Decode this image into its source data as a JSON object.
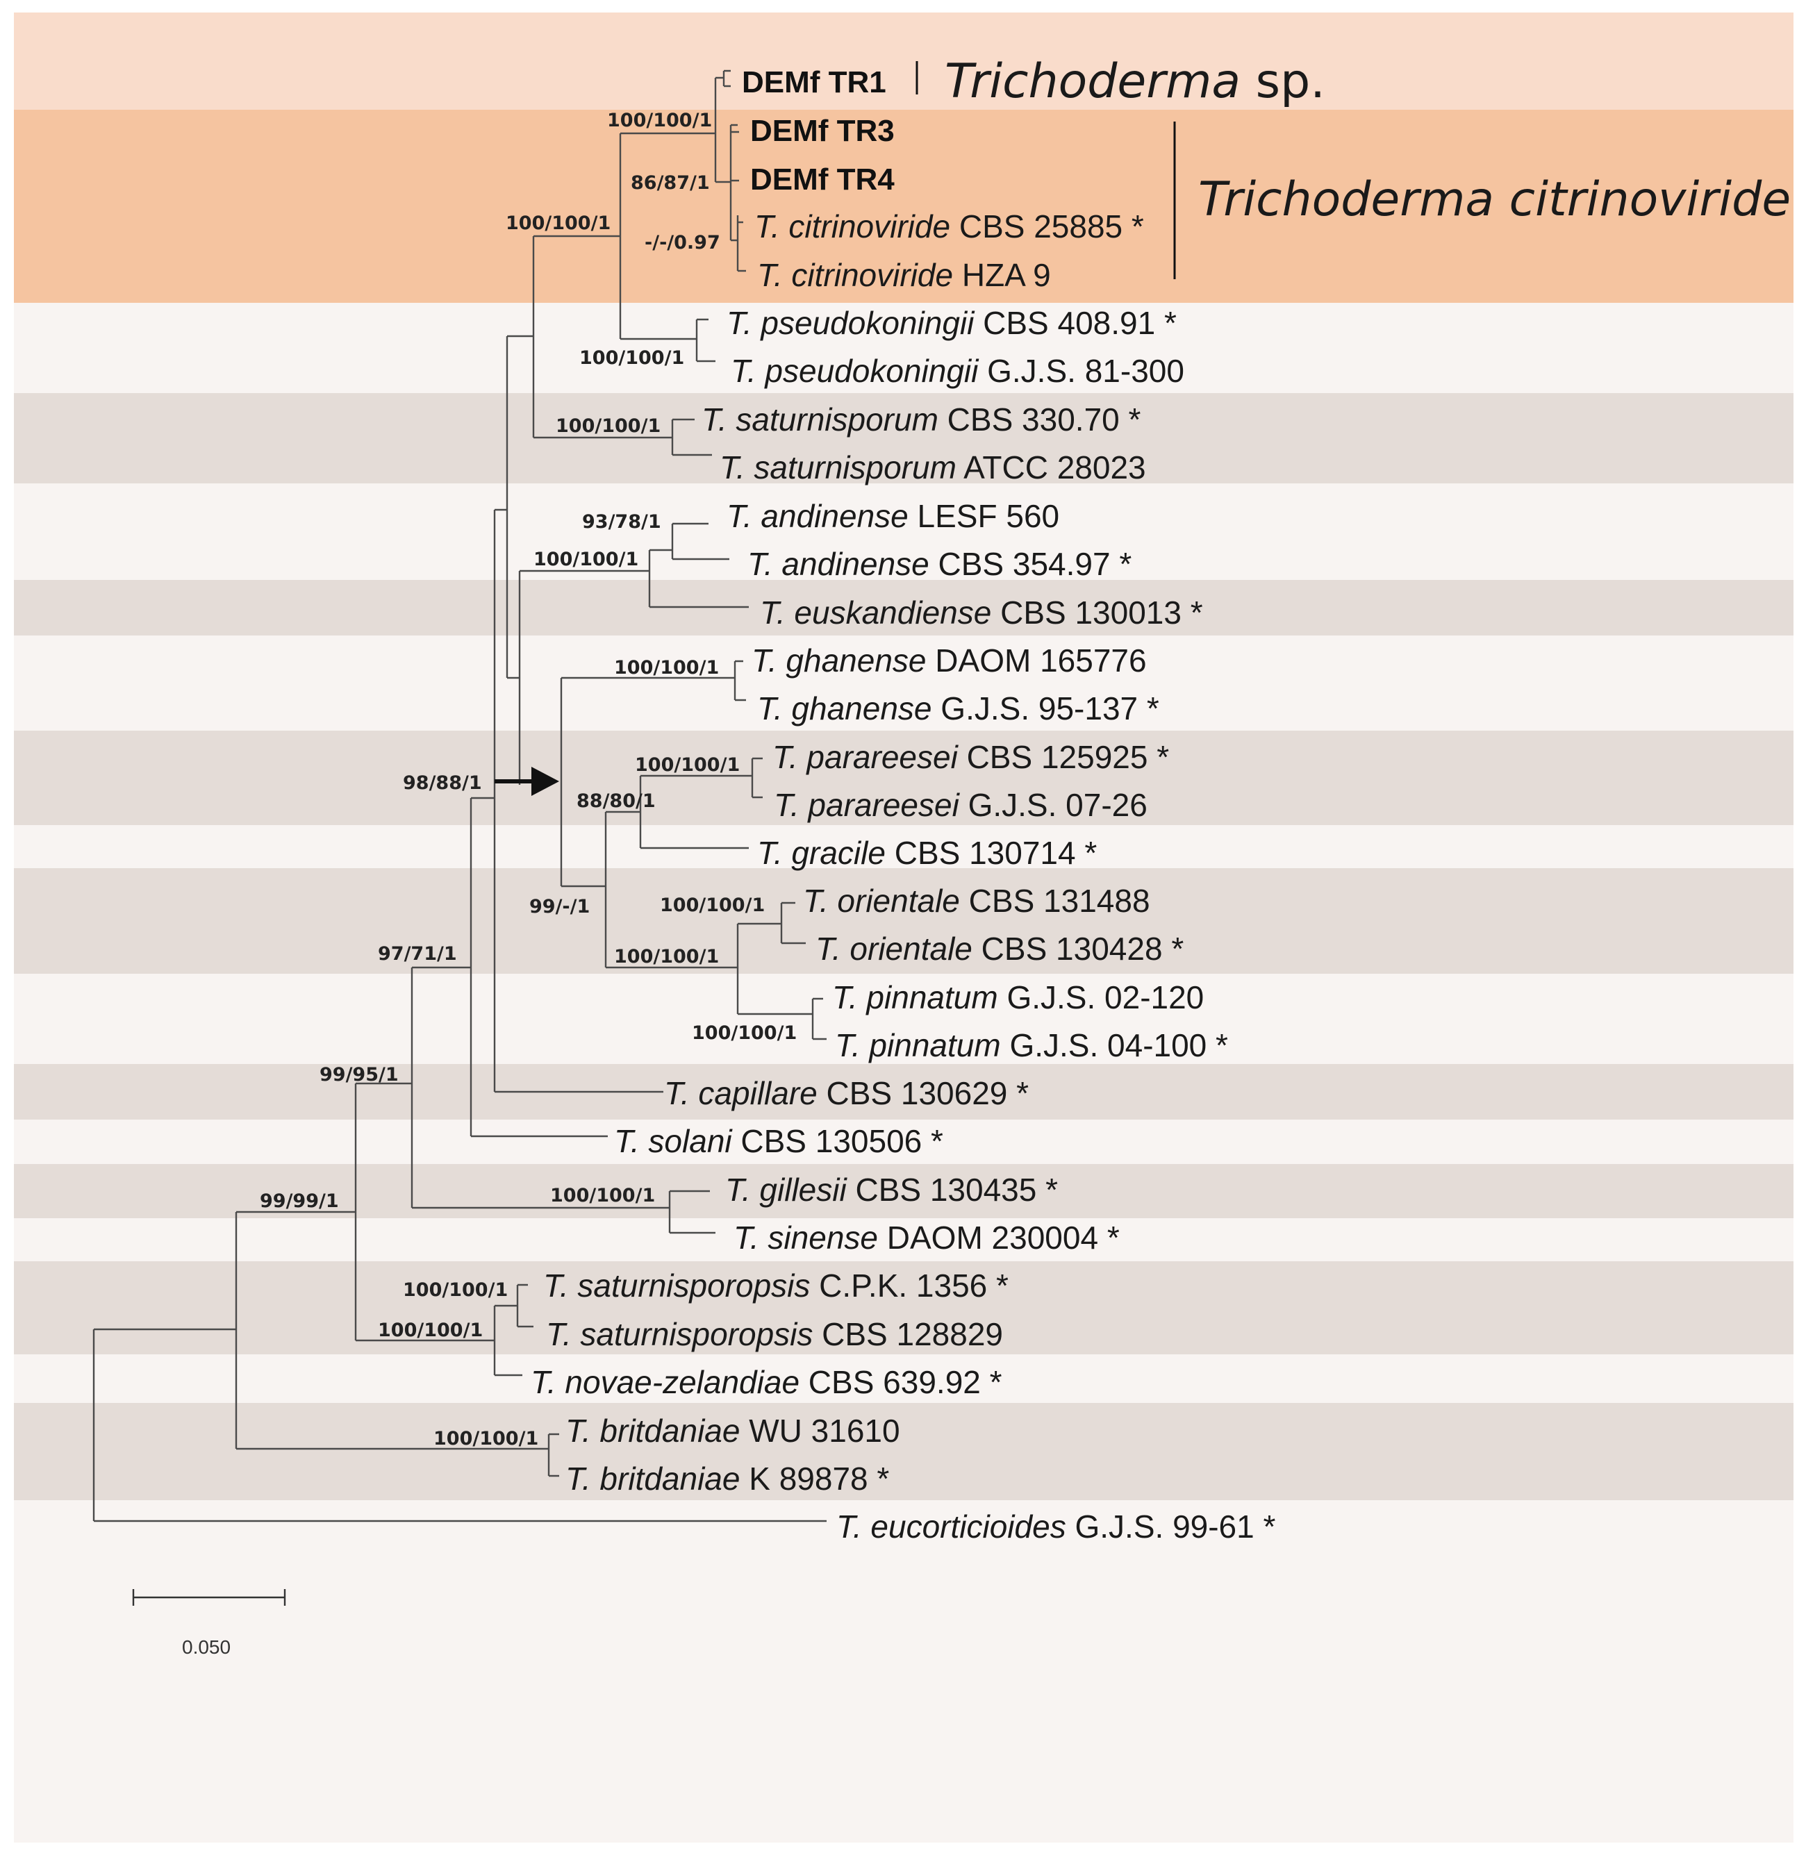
{
  "clades": {
    "trichoderma_sp": {
      "genus": "Trichoderma",
      "rest": " sp."
    },
    "citrinoviride": {
      "label": "Trichoderma citrinoviride"
    }
  },
  "taxa": [
    {
      "id": "tr1",
      "bold": "DEMf TR1"
    },
    {
      "id": "tr3",
      "bold": "DEMf TR3"
    },
    {
      "id": "tr4",
      "bold": "DEMf TR4"
    },
    {
      "id": "cit1",
      "species": "T. citrinoviride",
      "strain": " CBS 25885 *"
    },
    {
      "id": "cit2",
      "species": "T. citrinoviride",
      "strain": " HZA 9"
    },
    {
      "id": "pse1",
      "species": "T. pseudokoningii",
      "strain": " CBS 408.91 *"
    },
    {
      "id": "pse2",
      "species": "T. pseudokoningii",
      "strain": " G.J.S. 81-300"
    },
    {
      "id": "sat1",
      "species": "T. saturnisporum",
      "strain": " CBS 330.70 *"
    },
    {
      "id": "sat2",
      "species": "T. saturnisporum",
      "strain": " ATCC 28023"
    },
    {
      "id": "and1",
      "species": "T. andinense",
      "strain": " LESF 560"
    },
    {
      "id": "and2",
      "species": "T. andinense",
      "strain": " CBS 354.97 *"
    },
    {
      "id": "eus",
      "species": "T. euskandiense",
      "strain": " CBS 130013 *"
    },
    {
      "id": "gha1",
      "species": "T. ghanense",
      "strain": " DAOM 165776"
    },
    {
      "id": "gha2",
      "species": "T. ghanense",
      "strain": " G.J.S. 95-137 *"
    },
    {
      "id": "par1",
      "species": "T. parareesei",
      "strain": " CBS 125925 *"
    },
    {
      "id": "par2",
      "species": "T. parareesei",
      "strain": " G.J.S. 07-26"
    },
    {
      "id": "gra",
      "species": "T. gracile",
      "strain": " CBS 130714 *"
    },
    {
      "id": "ori1",
      "species": "T. orientale",
      "strain": " CBS 131488"
    },
    {
      "id": "ori2",
      "species": "T. orientale",
      "strain": " CBS 130428 *"
    },
    {
      "id": "pin1",
      "species": "T. pinnatum",
      "strain": " G.J.S. 02-120"
    },
    {
      "id": "pin2",
      "species": "T. pinnatum",
      "strain": " G.J.S. 04-100 *"
    },
    {
      "id": "cap",
      "species": "T. capillare",
      "strain": " CBS 130629 *"
    },
    {
      "id": "sol",
      "species": "T. solani",
      "strain": " CBS 130506 *"
    },
    {
      "id": "gil",
      "species": "T. gillesii",
      "strain": " CBS 130435 *"
    },
    {
      "id": "sin",
      "species": "T. sinense",
      "strain": " DAOM 230004 *"
    },
    {
      "id": "sps1",
      "species": "T. saturnisporopsis",
      "strain": " C.P.K. 1356 *"
    },
    {
      "id": "sps2",
      "species": "T. saturnisporopsis",
      "strain": " CBS 128829"
    },
    {
      "id": "nov",
      "species": "T. novae-zelandiae",
      "strain": " CBS 639.92 *"
    },
    {
      "id": "bri1",
      "species": "T. britdaniae",
      "strain": " WU 31610"
    },
    {
      "id": "bri2",
      "species": "T. britdaniae",
      "strain": " K 89878 *"
    },
    {
      "id": "euc",
      "species": "T. eucorticioides",
      "strain": " G.J.S. 99-61 *"
    }
  ],
  "support": {
    "s_tr_top": "100/100/1",
    "s_86": "86/87/1",
    "s_097": "-/-/0.97",
    "s_cit_pse": "100/100/1",
    "s_pse": "100/100/1",
    "s_sat": "100/100/1",
    "s_and": "93/78/1",
    "s_and_eus": "100/100/1",
    "s_gha": "100/100/1",
    "s_par": "100/100/1",
    "s_par_gra": "88/80/1",
    "s_9911": "99/-/1",
    "s_ori": "100/100/1",
    "s_ori_pin": "100/100/1",
    "s_pin": "100/100/1",
    "s_98": "98/88/1",
    "s_97": "97/71/1",
    "s_99951": "99/95/1",
    "s_gil": "100/100/1",
    "s_99991": "99/99/1",
    "s_sps": "100/100/1",
    "s_sps_nov": "100/100/1",
    "s_bri": "100/100/1"
  },
  "scale": {
    "label": "0.050"
  }
}
